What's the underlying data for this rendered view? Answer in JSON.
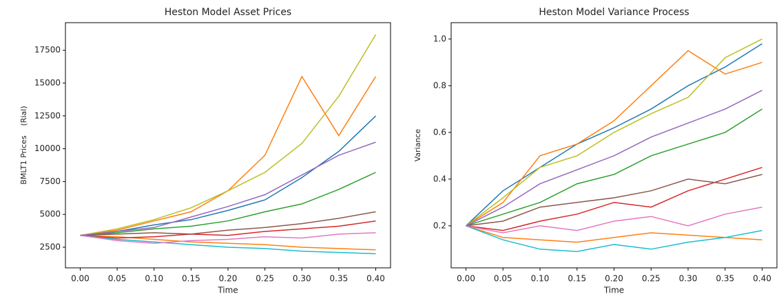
{
  "chart_data": [
    {
      "type": "line",
      "title": "Heston Model Asset Prices",
      "x_label": "Time",
      "y_label": "BMLT1 Prices    (Rial)",
      "x": [
        0,
        0.05,
        0.1,
        0.15,
        0.2,
        0.25,
        0.3,
        0.35,
        0.4
      ],
      "xlim": [
        -0.02,
        0.42
      ],
      "ylim": [
        930,
        19600
      ],
      "xticks": [
        {
          "value": 0,
          "label": "0.00"
        },
        0.05,
        {
          "value": 0.1,
          "label": "0.10"
        },
        0.15,
        {
          "value": 0.2,
          "label": "0.20"
        },
        0.25,
        {
          "value": 0.3,
          "label": "0.30"
        },
        0.35,
        {
          "value": 0.4,
          "label": "0.40"
        }
      ],
      "yticks": [
        2500,
        5000,
        7500,
        10000,
        12500,
        15000,
        17500
      ],
      "series": [
        {
          "color": "#1f77b4",
          "values": [
            3400,
            3700,
            4200,
            4600,
            5300,
            6100,
            7800,
            9800,
            12500
          ]
        },
        {
          "color": "#ff7f0e",
          "values": [
            3400,
            3300,
            3100,
            2900,
            2800,
            2700,
            2500,
            2400,
            2300
          ]
        },
        {
          "color": "#ff7f0e",
          "values": [
            3400,
            3800,
            4500,
            5200,
            6800,
            9500,
            15500,
            11000,
            15500
          ]
        },
        {
          "color": "#2ca02c",
          "values": [
            3400,
            3600,
            3900,
            4100,
            4500,
            5200,
            5800,
            6900,
            8200
          ]
        },
        {
          "color": "#d62728",
          "values": [
            3400,
            3200,
            3300,
            3500,
            3400,
            3700,
            3900,
            4100,
            4500
          ]
        },
        {
          "color": "#17becf",
          "values": [
            3400,
            3100,
            2900,
            2700,
            2500,
            2400,
            2200,
            2100,
            2000
          ]
        },
        {
          "color": "#bcbd22",
          "values": [
            3400,
            3900,
            4600,
            5500,
            6800,
            8200,
            10400,
            14000,
            18700
          ]
        },
        {
          "color": "#8c564b",
          "values": [
            3400,
            3500,
            3600,
            3500,
            3800,
            4000,
            4300,
            4700,
            5200
          ]
        },
        {
          "color": "#e377c2",
          "values": [
            3400,
            3000,
            2800,
            3000,
            3100,
            3300,
            3200,
            3500,
            3600
          ]
        },
        {
          "color": "#9467bd",
          "values": [
            3400,
            3700,
            4000,
            4800,
            5600,
            6500,
            8000,
            9500,
            10500
          ]
        }
      ]
    },
    {
      "type": "line",
      "title": "Heston Model Variance Process",
      "x_label": "Time",
      "y_label": "Variance",
      "x": [
        0,
        0.05,
        0.1,
        0.15,
        0.2,
        0.25,
        0.3,
        0.35,
        0.4
      ],
      "xlim": [
        -0.02,
        0.42
      ],
      "ylim": [
        0.02,
        1.07
      ],
      "xticks": [
        {
          "value": 0,
          "label": "0.00"
        },
        0.05,
        {
          "value": 0.1,
          "label": "0.10"
        },
        0.15,
        {
          "value": 0.2,
          "label": "0.20"
        },
        0.25,
        {
          "value": 0.3,
          "label": "0.30"
        },
        0.35,
        {
          "value": 0.4,
          "label": "0.40"
        }
      ],
      "yticks": [
        0.2,
        0.4,
        0.6,
        0.8,
        {
          "value": 1,
          "label": "1.0"
        }
      ],
      "series": [
        {
          "color": "#1f77b4",
          "values": [
            0.2,
            0.35,
            0.45,
            0.55,
            0.62,
            0.7,
            0.8,
            0.88,
            0.98
          ]
        },
        {
          "color": "#ff7f0e",
          "values": [
            0.2,
            0.15,
            0.14,
            0.13,
            0.15,
            0.17,
            0.16,
            0.15,
            0.14
          ]
        },
        {
          "color": "#ff7f0e",
          "values": [
            0.2,
            0.3,
            0.5,
            0.55,
            0.65,
            0.8,
            0.95,
            0.85,
            0.9
          ]
        },
        {
          "color": "#2ca02c",
          "values": [
            0.2,
            0.25,
            0.3,
            0.38,
            0.42,
            0.5,
            0.55,
            0.6,
            0.7
          ]
        },
        {
          "color": "#d62728",
          "values": [
            0.2,
            0.18,
            0.22,
            0.25,
            0.3,
            0.28,
            0.35,
            0.4,
            0.45
          ]
        },
        {
          "color": "#17becf",
          "values": [
            0.2,
            0.14,
            0.1,
            0.09,
            0.12,
            0.1,
            0.13,
            0.15,
            0.18
          ]
        },
        {
          "color": "#bcbd22",
          "values": [
            0.2,
            0.32,
            0.45,
            0.5,
            0.6,
            0.68,
            0.75,
            0.92,
            1.0
          ]
        },
        {
          "color": "#8c564b",
          "values": [
            0.2,
            0.22,
            0.28,
            0.3,
            0.32,
            0.35,
            0.4,
            0.38,
            0.42
          ]
        },
        {
          "color": "#e377c2",
          "values": [
            0.2,
            0.17,
            0.2,
            0.18,
            0.22,
            0.24,
            0.2,
            0.25,
            0.28
          ]
        },
        {
          "color": "#9467bd",
          "values": [
            0.2,
            0.28,
            0.38,
            0.44,
            0.5,
            0.58,
            0.64,
            0.7,
            0.78
          ]
        }
      ]
    }
  ]
}
